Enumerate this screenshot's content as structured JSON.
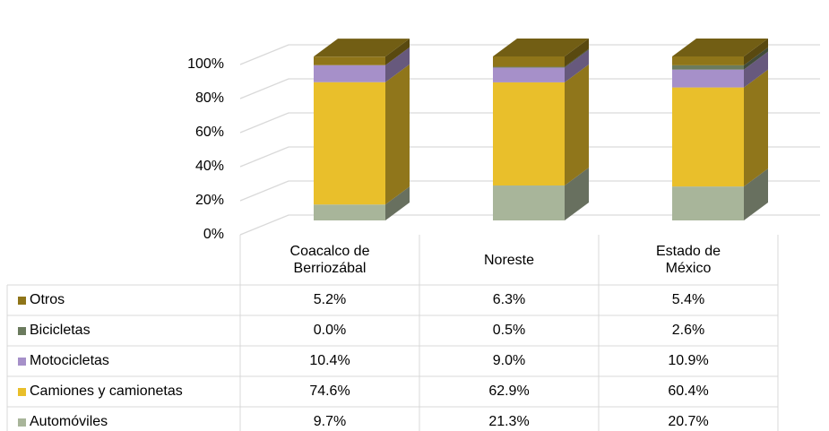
{
  "chart_data": {
    "type": "bar3d_stacked_table",
    "categories": [
      "Coacalco de Berriozábal",
      "Noreste",
      "Estado de México"
    ],
    "series": [
      {
        "name": "Automóviles",
        "color": "#a8b59a",
        "values": [
          9.7,
          21.3,
          20.7
        ],
        "value_labels": [
          "9.7%",
          "21.3%",
          "20.7%"
        ]
      },
      {
        "name": "Camiones y camionetas",
        "color": "#e9bf2b",
        "values": [
          74.6,
          62.9,
          60.4
        ],
        "value_labels": [
          "74.6%",
          "62.9%",
          "60.4%"
        ]
      },
      {
        "name": "Motocicletas",
        "color": "#a690c9",
        "values": [
          10.4,
          9.0,
          10.9
        ],
        "value_labels": [
          "10.4%",
          "9.0%",
          "10.9%"
        ]
      },
      {
        "name": "Bicicletas",
        "color": "#6b7b5e",
        "values": [
          0.0,
          0.5,
          2.6
        ],
        "value_labels": [
          "0.0%",
          "0.5%",
          "2.6%"
        ]
      },
      {
        "name": "Otros",
        "color": "#8f7519",
        "values": [
          5.2,
          6.3,
          5.4
        ],
        "value_labels": [
          "5.2%",
          "6.3%",
          "5.4%"
        ]
      }
    ],
    "ylim": [
      0,
      100
    ],
    "yticks": [
      {
        "value": 0,
        "label": "0%"
      },
      {
        "value": 20,
        "label": "20%"
      },
      {
        "value": 40,
        "label": "40%"
      },
      {
        "value": 60,
        "label": "60%"
      },
      {
        "value": 80,
        "label": "80%"
      },
      {
        "value": 100,
        "label": "100%"
      }
    ],
    "grid": true
  }
}
